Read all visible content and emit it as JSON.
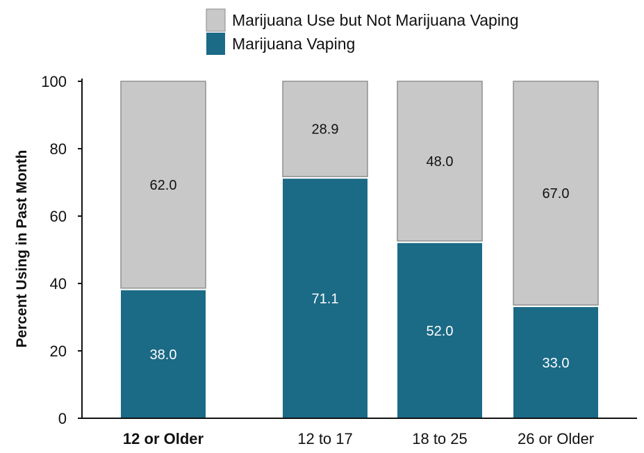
{
  "chart_data": {
    "type": "bar",
    "stacked": true,
    "categories": [
      "12 or Older",
      "12 to 17",
      "18 to 25",
      "26 or Older"
    ],
    "category_emphasis": [
      true,
      false,
      false,
      false
    ],
    "series": [
      {
        "name": "Marijuana Vaping",
        "values": [
          38.0,
          71.1,
          52.0,
          33.0
        ],
        "labels": [
          "38.0",
          "71.1",
          "52.0",
          "33.0"
        ],
        "color": "#1b6a86",
        "label_color": "#ffffff"
      },
      {
        "name": "Marijuana Use but Not Marijuana Vaping",
        "values": [
          62.0,
          28.9,
          48.0,
          67.0
        ],
        "labels": [
          "62.0",
          "28.9",
          "48.0",
          "67.0"
        ],
        "color": "#c8c8c8",
        "label_color": "#111111"
      }
    ],
    "legend_order": [
      1,
      0
    ],
    "title": "",
    "xlabel": "",
    "ylabel": "Percent Using in Past Month",
    "ylim": [
      0,
      100
    ],
    "yticks": [
      0,
      20,
      40,
      60,
      80,
      100
    ],
    "legend_position": "top",
    "grid": false
  }
}
